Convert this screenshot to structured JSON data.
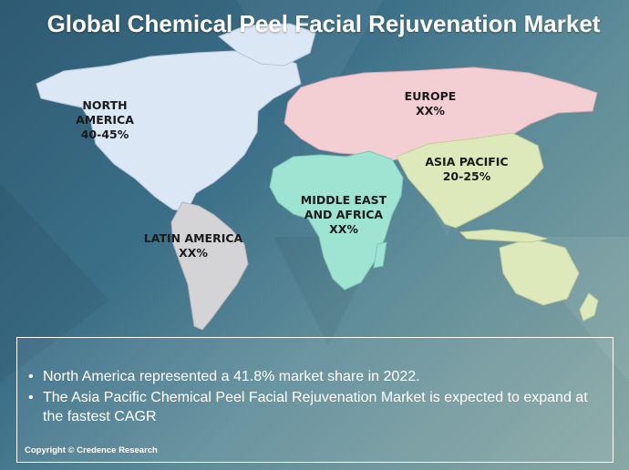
{
  "title": "Global Chemical Peel Facial Rejuvenation Market",
  "regions": [
    {
      "id": "north-america",
      "name": "NORTH AMERICA",
      "value": "40-45%",
      "color": "#dbe7f5"
    },
    {
      "id": "europe",
      "name": "EUROPE",
      "value": "XX%",
      "color": "#f3cfd3"
    },
    {
      "id": "asia-pacific",
      "name": "ASIA PACIFIC",
      "value": "20-25%",
      "color": "#dde9bb"
    },
    {
      "id": "middle-east-africa",
      "name": "MIDDLE EAST AND AFRICA",
      "value": "XX%",
      "color": "#9fe3d3"
    },
    {
      "id": "latin-america",
      "name": "LATIN AMERICA",
      "value": "XX%",
      "color": "#d4d4d6"
    }
  ],
  "bullets": [
    "North America represented a 41.8% market share in 2022.",
    "The Asia Pacific Chemical Peel Facial Rejuvenation Market is expected to expand at the fastest CAGR"
  ],
  "bullet_glyph": "•",
  "copyright": "Copyright © Credence Research"
}
